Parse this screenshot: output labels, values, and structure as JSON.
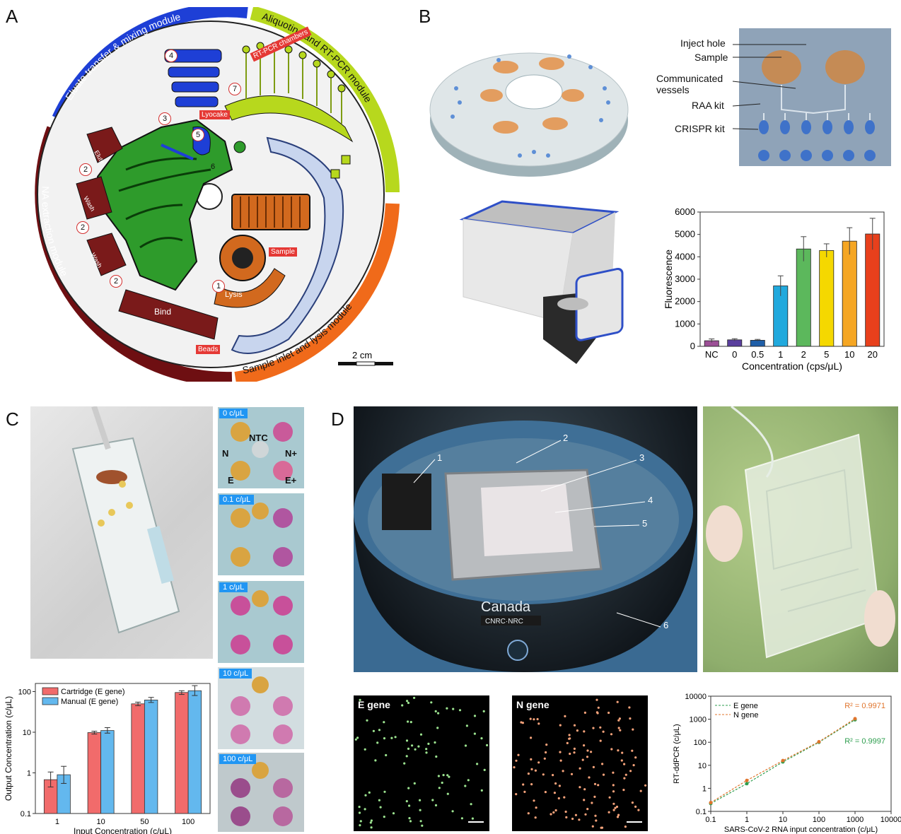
{
  "panels": {
    "A": {
      "letter": "A",
      "modules": {
        "eluate": "Eluate transfer & mixing module",
        "aliquot": "Aliquoting and RT-PCR module",
        "na": "NA extraction module",
        "sample": "Sample inlet and lysis module"
      },
      "tags": {
        "rtpcr": "RT-PCR chambers",
        "lyocake": "Lyocake",
        "sample": "Sample",
        "beads": "Beads"
      },
      "labels": {
        "elute": "Elute",
        "wash1": "Wash",
        "wash2": "Wash",
        "bind": "Bind",
        "lysis": "Lysis"
      },
      "numbers": [
        "1",
        "2",
        "2",
        "2",
        "3",
        "4",
        "5",
        "6",
        "7"
      ],
      "scalebar": "2 cm"
    },
    "B": {
      "letter": "B",
      "callouts": {
        "inject": "Inject hole",
        "sample": "Sample",
        "comm": "Communicated\nvessels",
        "raa": "RAA kit",
        "crispr": "CRISPR kit"
      }
    },
    "C": {
      "letter": "C",
      "wells": {
        "ntc": "NTC",
        "n": "N",
        "nplus": "N+",
        "e": "E",
        "eplus": "E+"
      },
      "conc_tags": [
        "0 c/μL",
        "0.1 c/μL",
        "1 c/μL",
        "10 c/μL",
        "100 c/μL"
      ]
    },
    "D": {
      "letter": "D",
      "callouts": [
        "1",
        "2",
        "3",
        "4",
        "5",
        "6"
      ],
      "e_gene": "E gene",
      "n_gene": "N gene"
    }
  },
  "chart_data": [
    {
      "type": "bar",
      "categories": [
        "NC",
        "0",
        "0.5",
        "1",
        "2",
        "5",
        "10",
        "20"
      ],
      "values": [
        250,
        290,
        270,
        2700,
        4350,
        4280,
        4700,
        5020
      ],
      "errors": [
        80,
        50,
        40,
        450,
        550,
        300,
        600,
        700
      ],
      "colors": [
        "#9c4f96",
        "#5a3f9e",
        "#1f5fa8",
        "#21a9dd",
        "#5cb85c",
        "#f5d800",
        "#f5a623",
        "#e8401c"
      ],
      "xlabel": "Concentration (cps/μL)",
      "ylabel": "Fluorescence",
      "ylim": [
        0,
        6000
      ],
      "yticks": [
        "0",
        "1000",
        "2000",
        "3000",
        "4000",
        "5000",
        "6000"
      ]
    },
    {
      "type": "bar",
      "categories": [
        "1",
        "10",
        "50",
        "100"
      ],
      "series": [
        {
          "name": "Cartridge (E gene)",
          "values": [
            0.68,
            9.8,
            50,
            95
          ],
          "errors_low": [
            0.45,
            9.0,
            45,
            85
          ],
          "errors_high": [
            1.05,
            10.6,
            55,
            105
          ],
          "color": "#f16b6b"
        },
        {
          "name": "Manual (E gene)",
          "values": [
            0.9,
            11,
            62,
            105
          ],
          "errors_low": [
            0.55,
            9.5,
            54,
            80
          ],
          "errors_high": [
            1.45,
            13,
            72,
            140
          ],
          "color": "#63b8ee"
        }
      ],
      "xlabel": "Input Concentration (c/μL)",
      "ylabel": "Output Concentration (c/μL)",
      "yscale": "log",
      "ylim": [
        0.1,
        100
      ],
      "yticks": [
        "0.1",
        "1",
        "10",
        "100"
      ],
      "legend": "top-left"
    },
    {
      "type": "line",
      "x": [
        0.1,
        1,
        10,
        100,
        1000
      ],
      "series": [
        {
          "name": "E gene",
          "values": [
            0.22,
            1.6,
            14,
            100,
            950
          ],
          "color": "#2e9e4f"
        },
        {
          "name": "N gene",
          "values": [
            0.24,
            2.2,
            16,
            105,
            1050
          ],
          "color": "#e0742c"
        }
      ],
      "annotations": [
        {
          "text": "R² = 0.9971",
          "color": "#e0742c"
        },
        {
          "text": "R² = 0.9997",
          "color": "#2e9e4f"
        }
      ],
      "xlabel": "SARS-CoV-2 RNA input concentration (c/μL)",
      "ylabel": "RT-ddPCR (c/μL)",
      "xscale": "log",
      "yscale": "log",
      "xlim": [
        0.1,
        10000
      ],
      "ylim": [
        0.1,
        10000
      ],
      "xticks": [
        "0.1",
        "1",
        "10",
        "100",
        "1000",
        "10000"
      ],
      "yticks": [
        "0.1",
        "1",
        "10",
        "100",
        "1000",
        "10000"
      ],
      "legend": "top-left"
    }
  ]
}
